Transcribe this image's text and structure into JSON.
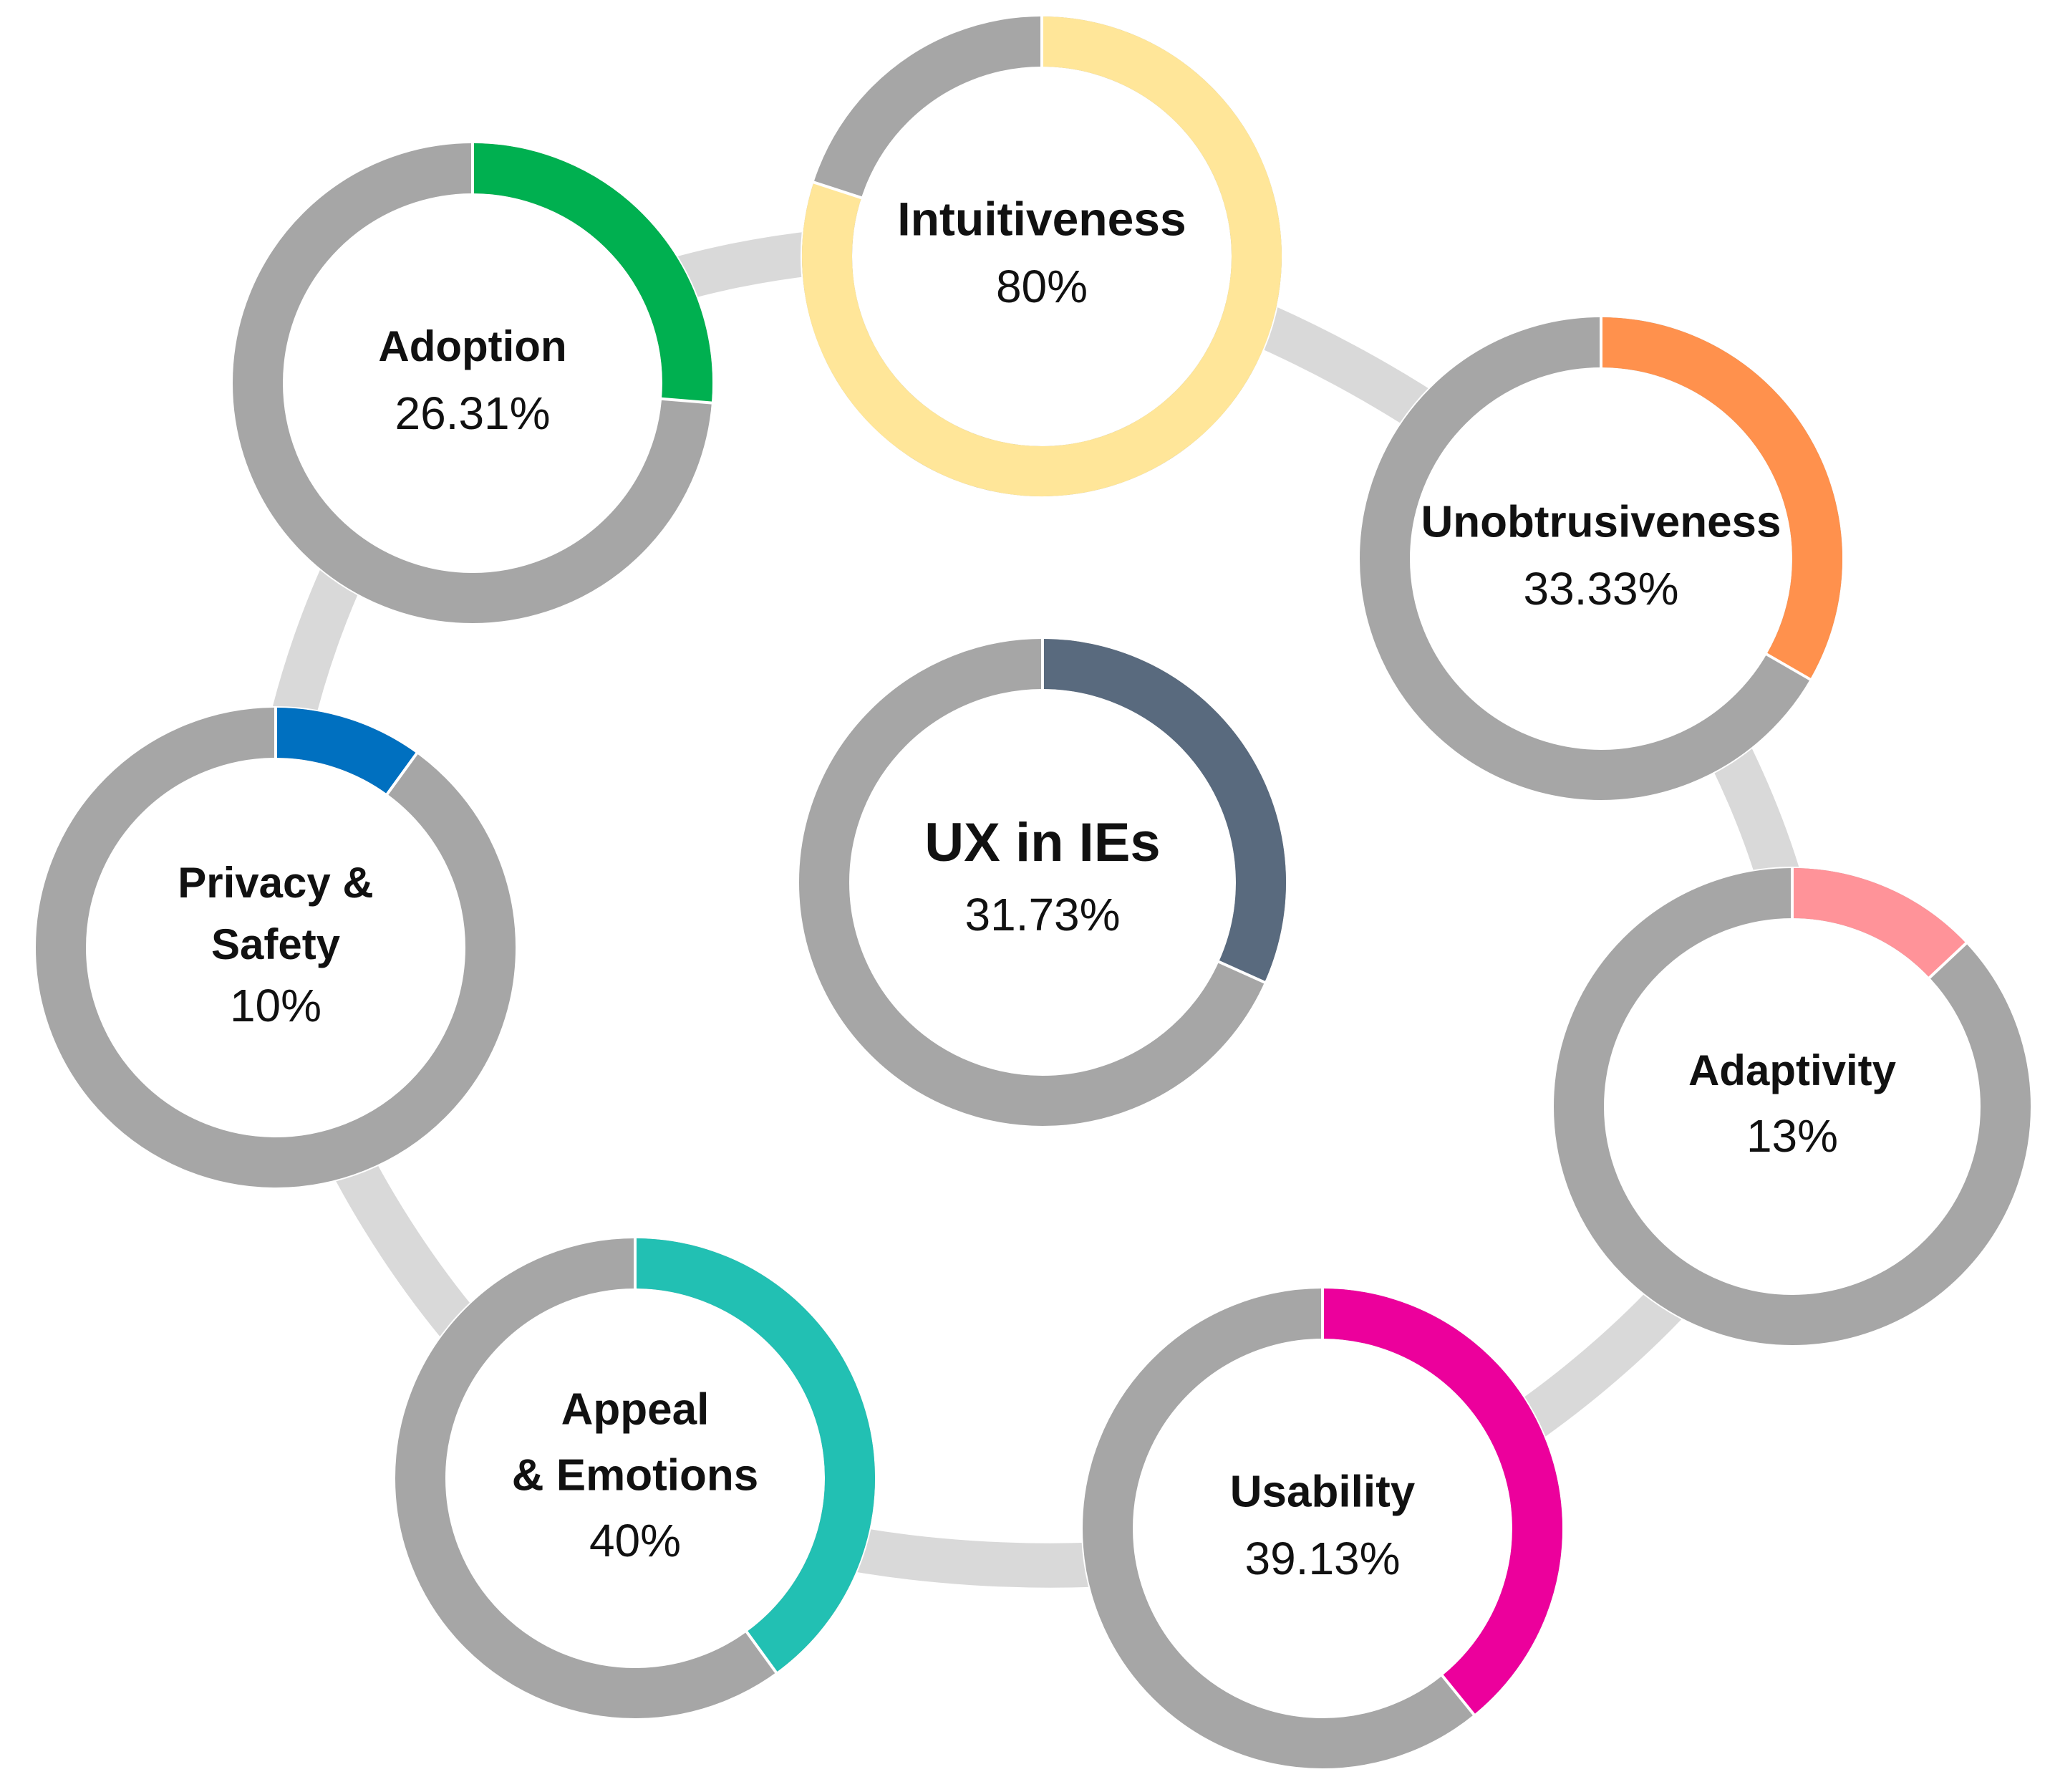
{
  "chart_data": {
    "type": "pie",
    "style": "donut-ring-cycle",
    "track_color": "#a6a6a6",
    "connector_color": "#d9d9d9",
    "center": {
      "name": "UX in IEs",
      "value": 31.73,
      "value_label": "31.73%",
      "color": "#596a7e"
    },
    "rings": [
      {
        "name": "Intuitiveness",
        "lines": [
          "Intuitiveness"
        ],
        "value": 80,
        "value_label": "80%",
        "color": "#ffe699"
      },
      {
        "name": "Unobtrusiveness",
        "lines": [
          "Unobtrusiveness"
        ],
        "value": 33.33,
        "value_label": "33.33%",
        "color": "#ff914d"
      },
      {
        "name": "Adaptivity",
        "lines": [
          "Adaptivity"
        ],
        "value": 13,
        "value_label": "13%",
        "color": "#ff9399"
      },
      {
        "name": "Usability",
        "lines": [
          "Usability"
        ],
        "value": 39.13,
        "value_label": "39.13%",
        "color": "#ec009c"
      },
      {
        "name": "Appeal & Emotions",
        "lines": [
          "Appeal",
          "& Emotions"
        ],
        "value": 40,
        "value_label": "40%",
        "color": "#22c0b3"
      },
      {
        "name": "Privacy & Safety",
        "lines": [
          "Privacy &",
          "Safety"
        ],
        "value": 10,
        "value_label": "10%",
        "color": "#0070c0"
      },
      {
        "name": "Adoption",
        "lines": [
          "Adoption"
        ],
        "value": 26.31,
        "value_label": "26.31%",
        "color": "#00b050"
      }
    ]
  }
}
